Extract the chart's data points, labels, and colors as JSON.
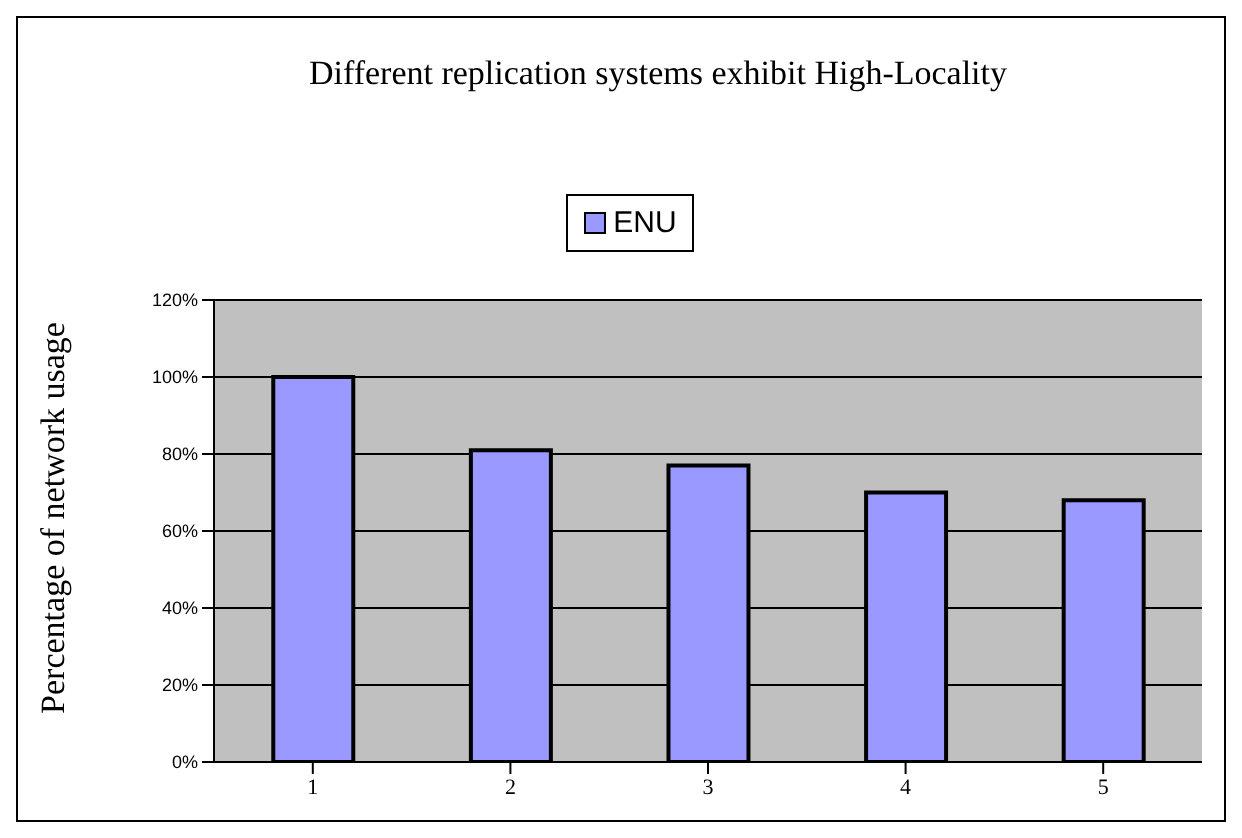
{
  "chart_data": {
    "type": "bar",
    "title": "Different replication systems exhibit High-Locality",
    "ylabel": "Percentage of network usage",
    "categories": [
      "1",
      "2",
      "3",
      "4",
      "5"
    ],
    "series": [
      {
        "name": "ENU",
        "color": "#9999ff",
        "values": [
          100,
          81,
          77,
          70,
          68
        ]
      }
    ],
    "ylim": [
      0,
      120
    ],
    "yticks": [
      {
        "value": 0,
        "label": "0%"
      },
      {
        "value": 20,
        "label": "20%"
      },
      {
        "value": 40,
        "label": "40%"
      },
      {
        "value": 60,
        "label": "60%"
      },
      {
        "value": 80,
        "label": "80%"
      },
      {
        "value": 100,
        "label": "100%"
      },
      {
        "value": 120,
        "label": "120%"
      }
    ],
    "grid": "y",
    "legend": "top"
  }
}
